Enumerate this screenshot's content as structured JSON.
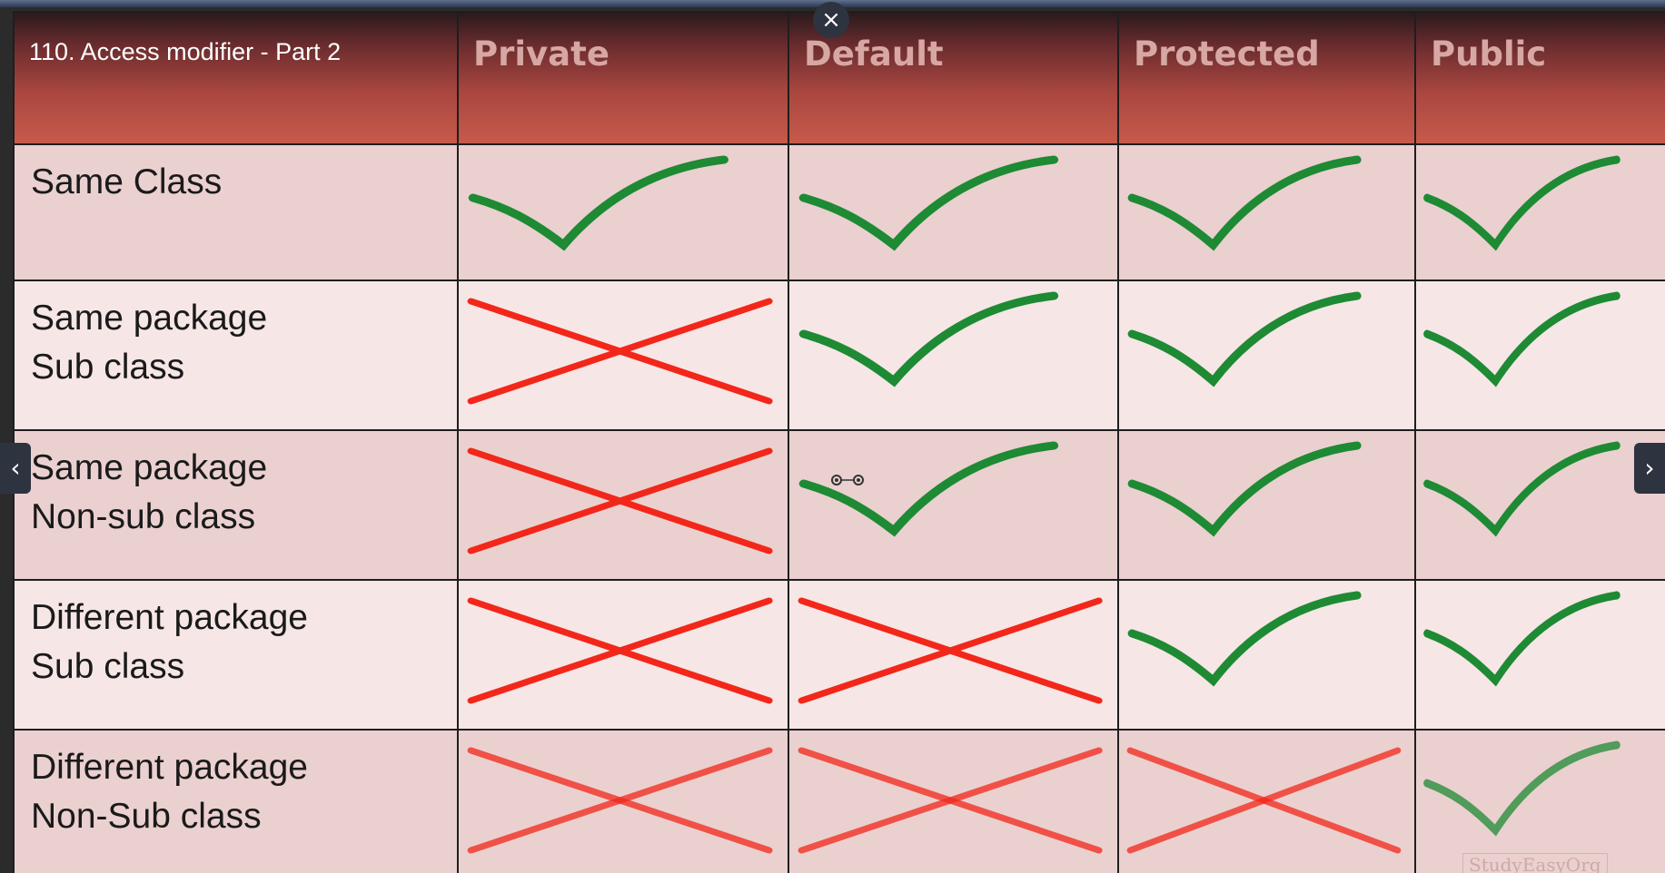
{
  "player": {
    "lecture_title": "110. Access modifier - Part 2",
    "close_glyph": "×",
    "prev_glyph": "‹",
    "next_glyph": "›",
    "watermark": "StudyEasyOrg"
  },
  "table": {
    "columns": [
      "Private",
      "Default",
      "Protected",
      "Public"
    ],
    "rows": [
      {
        "line1": "Same Class",
        "line2": "",
        "access": [
          "yes",
          "yes",
          "yes",
          "yes"
        ]
      },
      {
        "line1": "Same package",
        "line2": "Sub class",
        "access": [
          "no",
          "yes",
          "yes",
          "yes"
        ]
      },
      {
        "line1": "Same package",
        "line2": "Non-sub class",
        "access": [
          "no",
          "yes",
          "yes",
          "yes"
        ]
      },
      {
        "line1": "Different package",
        "line2": "Sub class",
        "access": [
          "no",
          "no",
          "yes",
          "yes"
        ]
      },
      {
        "line1": "Different package",
        "line2": "Non-Sub class",
        "access": [
          "no",
          "no",
          "no",
          "yes"
        ]
      }
    ]
  },
  "colors": {
    "check": "#1e8a34",
    "cross": "#f2271a",
    "header_text": "#d7a7a4"
  }
}
